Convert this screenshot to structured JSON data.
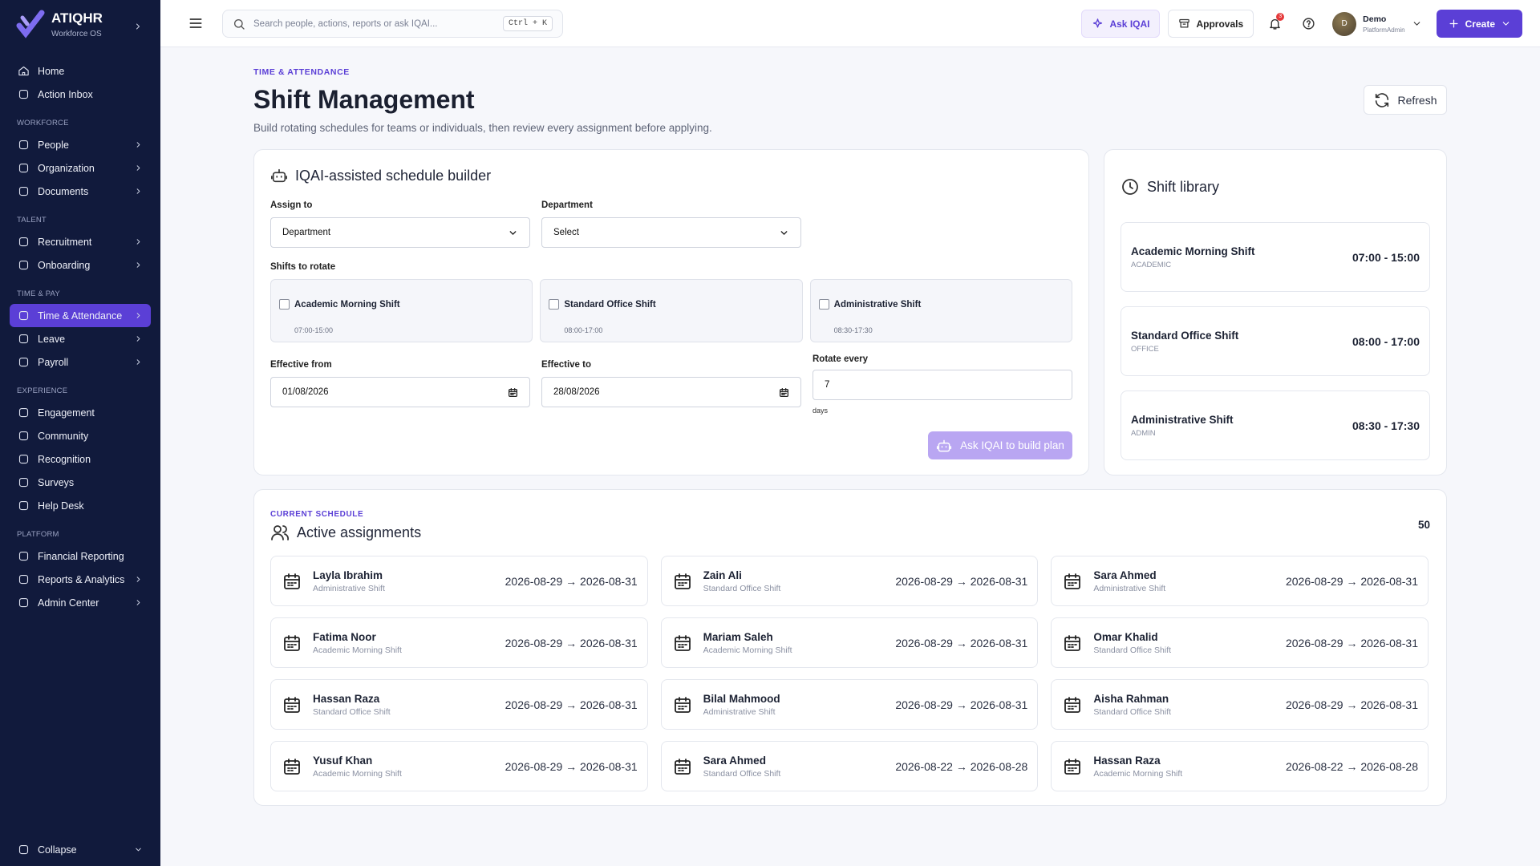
{
  "sidebar": {
    "brand": "ATIQHR",
    "tagline": "Workforce OS",
    "top_items": [
      {
        "label": "Home",
        "submenu": false
      },
      {
        "label": "Action Inbox",
        "submenu": false
      }
    ],
    "sections": [
      {
        "label": "WORKFORCE",
        "items": [
          {
            "label": "People",
            "submenu": true
          },
          {
            "label": "Organization",
            "submenu": true
          },
          {
            "label": "Documents",
            "submenu": true
          }
        ]
      },
      {
        "label": "TALENT",
        "items": [
          {
            "label": "Recruitment",
            "submenu": true
          },
          {
            "label": "Onboarding",
            "submenu": true
          }
        ]
      },
      {
        "label": "TIME & PAY",
        "items": [
          {
            "label": "Time & Attendance",
            "submenu": true,
            "active": true
          },
          {
            "label": "Leave",
            "submenu": true
          },
          {
            "label": "Payroll",
            "submenu": true
          }
        ]
      },
      {
        "label": "EXPERIENCE",
        "items": [
          {
            "label": "Engagement",
            "submenu": false
          },
          {
            "label": "Community",
            "submenu": false
          },
          {
            "label": "Recognition",
            "submenu": false
          },
          {
            "label": "Surveys",
            "submenu": false
          },
          {
            "label": "Help Desk",
            "submenu": false
          }
        ]
      },
      {
        "label": "PLATFORM",
        "items": [
          {
            "label": "Financial Reporting",
            "submenu": false
          },
          {
            "label": "Reports & Analytics",
            "submenu": true
          },
          {
            "label": "Admin Center",
            "submenu": true
          }
        ]
      }
    ],
    "collapse": "Collapse"
  },
  "topbar": {
    "search_placeholder": "Search people, actions, reports or ask IQAI...",
    "shortcut": "Ctrl + K",
    "ask": "Ask IQAI",
    "approvals": "Approvals",
    "notifications": 3,
    "user": {
      "initial": "D",
      "name": "Demo",
      "role": "PlatformAdmin"
    },
    "create": "Create"
  },
  "header": {
    "eyebrow": "TIME & ATTENDANCE",
    "title": "Shift Management",
    "subtitle": "Build rotating schedules for teams or individuals, then review every assignment before applying.",
    "refresh": "Refresh"
  },
  "builder": {
    "title": "IQAI-assisted schedule builder",
    "assign_label": "Assign to",
    "assign_value": "Department",
    "department_label": "Department",
    "department_value": "Select",
    "shifts_label": "Shifts to rotate",
    "shifts": [
      {
        "name": "Academic Morning Shift",
        "time": "07:00-15:00"
      },
      {
        "name": "Standard Office Shift",
        "time": "08:00-17:00"
      },
      {
        "name": "Administrative Shift",
        "time": "08:30-17:30"
      }
    ],
    "from_label": "Effective from",
    "from_value": "01/08/2026",
    "to_label": "Effective to",
    "to_value": "28/08/2026",
    "rotate_label": "Rotate every",
    "rotate_value": 7,
    "rotate_unit": "days",
    "button": "Ask IQAI to build plan"
  },
  "library": {
    "title": "Shift library",
    "items": [
      {
        "name": "Academic Morning Shift",
        "code": "ACADEMIC",
        "time": "07:00 - 15:00"
      },
      {
        "name": "Standard Office Shift",
        "code": "OFFICE",
        "time": "08:00 - 17:00"
      },
      {
        "name": "Administrative Shift",
        "code": "ADMIN",
        "time": "08:30 - 17:30"
      }
    ]
  },
  "schedule": {
    "eyebrow": "CURRENT SCHEDULE",
    "title": "Active assignments",
    "count": 50,
    "assignments": [
      {
        "name": "Layla Ibrahim",
        "shift": "Administrative Shift",
        "range": "2026-08-29 → 2026-08-31"
      },
      {
        "name": "Zain Ali",
        "shift": "Standard Office Shift",
        "range": "2026-08-29 → 2026-08-31"
      },
      {
        "name": "Sara Ahmed",
        "shift": "Administrative Shift",
        "range": "2026-08-29 → 2026-08-31"
      },
      {
        "name": "Fatima Noor",
        "shift": "Academic Morning Shift",
        "range": "2026-08-29 → 2026-08-31"
      },
      {
        "name": "Mariam Saleh",
        "shift": "Academic Morning Shift",
        "range": "2026-08-29 → 2026-08-31"
      },
      {
        "name": "Omar Khalid",
        "shift": "Standard Office Shift",
        "range": "2026-08-29 → 2026-08-31"
      },
      {
        "name": "Hassan Raza",
        "shift": "Standard Office Shift",
        "range": "2026-08-29 → 2026-08-31"
      },
      {
        "name": "Bilal Mahmood",
        "shift": "Administrative Shift",
        "range": "2026-08-29 → 2026-08-31"
      },
      {
        "name": "Aisha Rahman",
        "shift": "Standard Office Shift",
        "range": "2026-08-29 → 2026-08-31"
      },
      {
        "name": "Yusuf Khan",
        "shift": "Academic Morning Shift",
        "range": "2026-08-29 → 2026-08-31"
      },
      {
        "name": "Sara Ahmed",
        "shift": "Standard Office Shift",
        "range": "2026-08-22 → 2026-08-28"
      },
      {
        "name": "Hassan Raza",
        "shift": "Academic Morning Shift",
        "range": "2026-08-22 → 2026-08-28"
      }
    ]
  }
}
